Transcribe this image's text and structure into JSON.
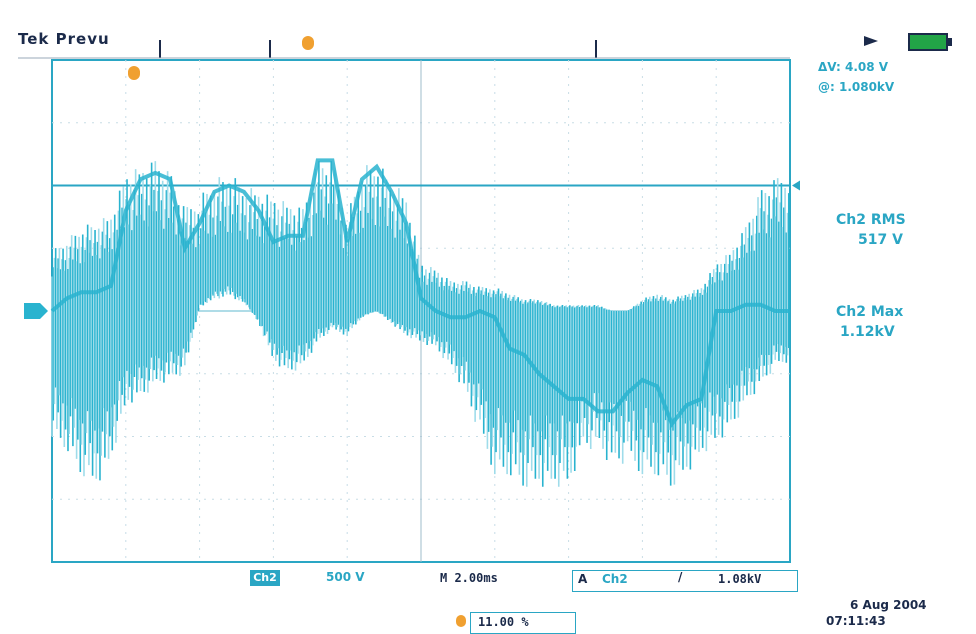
{
  "header": {
    "brand": "Tek",
    "mode": "Prevu"
  },
  "readouts": {
    "cursor_delta": "ΔV: 4.08 V",
    "cursor_at": "@: 1.080kV",
    "ch2_rms_label": "Ch2 RMS",
    "ch2_rms_value": "517 V",
    "ch2_max_label": "Ch2 Max",
    "ch2_max_value": "1.12kV"
  },
  "status_bar": {
    "channel_badge": "Ch2",
    "volts_per_div": "500 V",
    "timebase": "M 2.00ms",
    "trigger_symbol": "A",
    "trigger_channel": "Ch2",
    "trigger_slope": "/",
    "trigger_level": "1.08kV",
    "trigger_position": "11.00 %",
    "date": "6 Aug 2004",
    "time": "07:11:43"
  },
  "colors": {
    "trace": "#29b3cf",
    "trace_light": "#9fdcea",
    "grid": "#2aa6c4",
    "marker": "#f0a030",
    "text_dark": "#1b2a4a"
  },
  "chart_data": {
    "type": "line",
    "title": "",
    "xlabel": "",
    "ylabel": "",
    "x_divisions": 10,
    "y_divisions": 8,
    "xlim": [
      0,
      10
    ],
    "ylim": [
      -4,
      4
    ],
    "grid": true,
    "cursor_line_level": 2.0,
    "ground_marker_level": 0,
    "series": [
      {
        "x": [
          0.0,
          0.2,
          0.4,
          0.6,
          0.8,
          1.0,
          1.2,
          1.4,
          1.6,
          1.8,
          2.0,
          2.2,
          2.4,
          2.6,
          2.8,
          3.0,
          3.2,
          3.4,
          3.6,
          3.8,
          4.0,
          4.2,
          4.4,
          4.6,
          4.8,
          5.0,
          5.2,
          5.4,
          5.6,
          5.8,
          6.0,
          6.2,
          6.4,
          6.6,
          6.8,
          7.0,
          7.2,
          7.4,
          7.6,
          7.8,
          8.0,
          8.2,
          8.4,
          8.6,
          8.8,
          9.0,
          9.2,
          9.4,
          9.6,
          9.8,
          10.0
        ],
        "values": [
          0.0,
          0.2,
          0.3,
          0.3,
          0.4,
          1.6,
          2.1,
          2.2,
          2.1,
          1.0,
          1.4,
          1.9,
          2.0,
          1.9,
          1.6,
          1.1,
          1.2,
          1.2,
          2.4,
          2.4,
          1.1,
          2.1,
          2.3,
          1.9,
          1.4,
          0.2,
          0.0,
          -0.1,
          -0.1,
          0.0,
          -0.1,
          -0.6,
          -0.7,
          -1.0,
          -1.2,
          -1.4,
          -1.4,
          -1.6,
          -1.6,
          -1.3,
          -1.1,
          -1.2,
          -1.8,
          -1.5,
          -1.4,
          0.0,
          0.0,
          0.1,
          0.1,
          0.0,
          0.0
        ],
        "envelope_max": [
          1.0,
          1.2,
          1.4,
          1.5,
          1.6,
          2.3,
          2.4,
          2.5,
          2.3,
          1.7,
          1.9,
          2.2,
          2.3,
          2.1,
          2.0,
          1.9,
          1.8,
          1.7,
          2.5,
          2.5,
          1.6,
          2.4,
          2.5,
          2.2,
          1.9,
          0.8,
          0.7,
          0.5,
          0.5,
          0.4,
          0.4,
          0.3,
          0.2,
          0.2,
          0.1,
          0.1,
          0.1,
          0.1,
          0.0,
          0.0,
          0.2,
          0.3,
          0.2,
          0.3,
          0.4,
          0.8,
          1.0,
          1.4,
          2.0,
          2.2,
          2.3
        ],
        "envelope_min": [
          -2.0,
          -2.2,
          -2.6,
          -2.8,
          -2.4,
          -1.5,
          -1.4,
          -1.2,
          -1.1,
          -1.0,
          0.1,
          0.3,
          0.4,
          0.2,
          -0.2,
          -0.8,
          -1.0,
          -0.9,
          -0.5,
          -0.3,
          -0.4,
          -0.1,
          0.0,
          -0.2,
          -0.4,
          -0.5,
          -0.6,
          -0.9,
          -1.3,
          -2.0,
          -2.6,
          -2.6,
          -2.8,
          -2.8,
          -2.8,
          -2.8,
          -2.2,
          -2.2,
          -2.5,
          -2.4,
          -2.6,
          -2.6,
          -2.8,
          -2.6,
          -2.3,
          -2.1,
          -1.9,
          -1.5,
          -1.2,
          -0.9,
          -0.8
        ]
      }
    ]
  }
}
